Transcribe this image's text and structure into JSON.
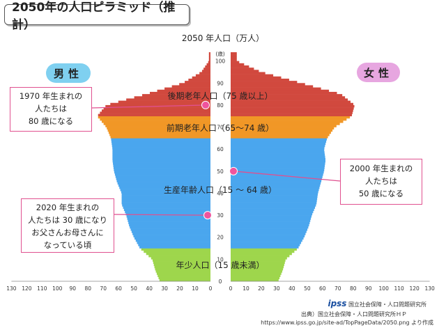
{
  "title": "2050年の人口ピラミッド（推計）",
  "chart_data": {
    "type": "population-pyramid",
    "title": "2050 年人口（万人）",
    "y_axis_unit": "(歳)",
    "age_ticks": [
      0,
      10,
      20,
      30,
      40,
      50,
      60,
      70,
      80,
      90,
      100
    ],
    "x_ticks": [
      130,
      120,
      110,
      100,
      90,
      80,
      70,
      60,
      50,
      40,
      30,
      20,
      10,
      0
    ],
    "xlim": [
      0,
      130
    ],
    "ylim": [
      0,
      104
    ],
    "male_label": "男性",
    "female_label": "女性",
    "ages": [
      0,
      5,
      10,
      15,
      20,
      25,
      30,
      35,
      40,
      45,
      50,
      55,
      60,
      65,
      70,
      75,
      80,
      85,
      90,
      95,
      100
    ],
    "male": [
      33,
      36,
      38,
      46,
      50,
      53,
      55,
      58,
      58,
      61,
      63,
      64,
      64,
      65,
      68,
      74,
      68,
      42,
      18,
      6,
      1
    ],
    "female": [
      31,
      34,
      36,
      44,
      48,
      51,
      53,
      56,
      57,
      59,
      61,
      62,
      61,
      63,
      68,
      79,
      81,
      72,
      46,
      20,
      4
    ],
    "bands": [
      {
        "name": "young",
        "label": "年少人口（15 歳未満）",
        "from": 0,
        "to": 15,
        "color": "#9ed64c"
      },
      {
        "name": "working",
        "label": "生産年齢人口（15 ～ 64 歳）",
        "from": 15,
        "to": 65,
        "color": "#4aa6ee"
      },
      {
        "name": "early-elderly",
        "label": "前期老年人口（65～74 歳）",
        "from": 65,
        "to": 75,
        "color": "#f19726"
      },
      {
        "name": "late-elderly",
        "label": "後期老年人口（75 歳以上）",
        "from": 75,
        "to": 105,
        "color": "#d1493e"
      }
    ],
    "markers": [
      {
        "age": 80,
        "side": "male"
      },
      {
        "age": 50,
        "side": "female"
      },
      {
        "age": 30,
        "side": "male"
      }
    ]
  },
  "callouts": {
    "c1970": [
      "1970 年生まれの",
      "人たちは",
      "80 歳になる"
    ],
    "c2000": [
      "2000 年生まれの",
      "人たちは",
      "50 歳になる"
    ],
    "c2020": [
      "2020 年生まれの",
      "人たちは 30 歳になり",
      "お父さんお母さんに",
      "なっている頃"
    ]
  },
  "source": {
    "line1": "出典）国立社会保障・人口問題研究所ＨＰ",
    "line2": "https://www.ipss.go.jp/site-ad/TopPageData/2050.png より作成",
    "logo_text": "国立社会保障・人口問題研究所"
  },
  "colors": {
    "male_badge": "#7fd0f0",
    "female_badge": "#e7a6e0",
    "callout_border": "#e0508f",
    "marker": "#f0549d"
  }
}
